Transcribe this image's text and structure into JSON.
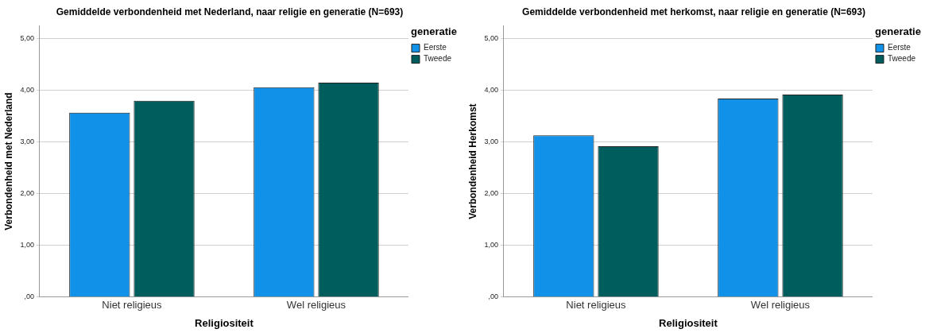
{
  "chart_data": [
    {
      "type": "bar",
      "title": "Gemiddelde verbondenheid met Nederland, naar religie en generatie (N=693)",
      "xlabel": "Religiositeit",
      "ylabel": "Verbondenheid met Nederland",
      "legend_title": "generatie",
      "categories": [
        "Niet religieus",
        "Wel religieus"
      ],
      "series": [
        {
          "name": "Eerste",
          "color": "#1192e8",
          "values": [
            3.57,
            4.06
          ]
        },
        {
          "name": "Tweede",
          "color": "#005d5d",
          "values": [
            3.8,
            4.15
          ]
        }
      ],
      "ylim": [
        0,
        5.25
      ],
      "yticks": [
        {
          "value": 0,
          "label": ",00"
        },
        {
          "value": 1,
          "label": "1,00"
        },
        {
          "value": 2,
          "label": "2,00"
        },
        {
          "value": 3,
          "label": "3,00"
        },
        {
          "value": 4,
          "label": "4,00"
        },
        {
          "value": 5,
          "label": "5,00"
        }
      ],
      "grid": "y",
      "legend": "top right"
    },
    {
      "type": "bar",
      "title": "Gemiddelde verbondenheid met herkomst, naar religie en generatie (N=693)",
      "xlabel": "Religiositeit",
      "ylabel": "Verbondenheid Herkomst",
      "legend_title": "generatie",
      "categories": [
        "Niet religieus",
        "Wel religieus"
      ],
      "series": [
        {
          "name": "Eerste",
          "color": "#1192e8",
          "values": [
            3.13,
            3.84
          ]
        },
        {
          "name": "Tweede",
          "color": "#005d5d",
          "values": [
            2.92,
            3.92
          ]
        }
      ],
      "ylim": [
        0,
        5.25
      ],
      "yticks": [
        {
          "value": 0,
          "label": ",00"
        },
        {
          "value": 1,
          "label": "1,00"
        },
        {
          "value": 2,
          "label": "2,00"
        },
        {
          "value": 3,
          "label": "3,00"
        },
        {
          "value": 4,
          "label": "4,00"
        },
        {
          "value": 5,
          "label": "5,00"
        }
      ],
      "grid": "y",
      "legend": "top right"
    }
  ]
}
